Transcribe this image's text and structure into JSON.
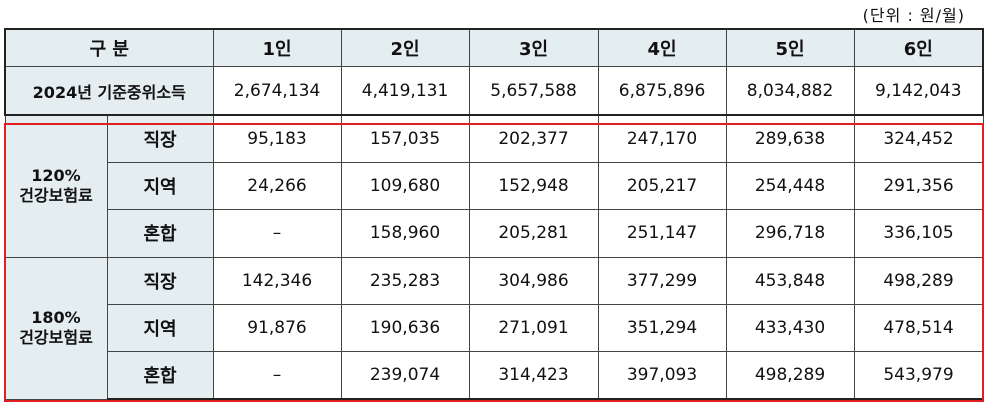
{
  "unit_label": "(단위 : 원/월)",
  "header": {
    "corner": "구 분",
    "columns": [
      "1인",
      "2인",
      "3인",
      "4인",
      "5인",
      "6인"
    ]
  },
  "median": {
    "label": "2024년 기준중위소득",
    "values": [
      "2,674,134",
      "4,419,131",
      "5,657,588",
      "6,875,896",
      "8,034,882",
      "9,142,043"
    ]
  },
  "groups": [
    {
      "pct": "120%",
      "name": "건강보험료",
      "rows": [
        {
          "label": "직장",
          "values": [
            "95,183",
            "157,035",
            "202,377",
            "247,170",
            "289,638",
            "324,452"
          ]
        },
        {
          "label": "지역",
          "values": [
            "24,266",
            "109,680",
            "152,948",
            "205,217",
            "254,448",
            "291,356"
          ]
        },
        {
          "label": "혼합",
          "values": [
            "–",
            "158,960",
            "205,281",
            "251,147",
            "296,718",
            "336,105"
          ]
        }
      ]
    },
    {
      "pct": "180%",
      "name": "건강보험료",
      "rows": [
        {
          "label": "직장",
          "values": [
            "142,346",
            "235,283",
            "304,986",
            "377,299",
            "453,848",
            "498,289"
          ]
        },
        {
          "label": "지역",
          "values": [
            "91,876",
            "190,636",
            "271,091",
            "351,294",
            "433,430",
            "478,514"
          ]
        },
        {
          "label": "혼합",
          "values": [
            "–",
            "239,074",
            "314,423",
            "397,093",
            "498,289",
            "543,979"
          ]
        }
      ]
    }
  ]
}
